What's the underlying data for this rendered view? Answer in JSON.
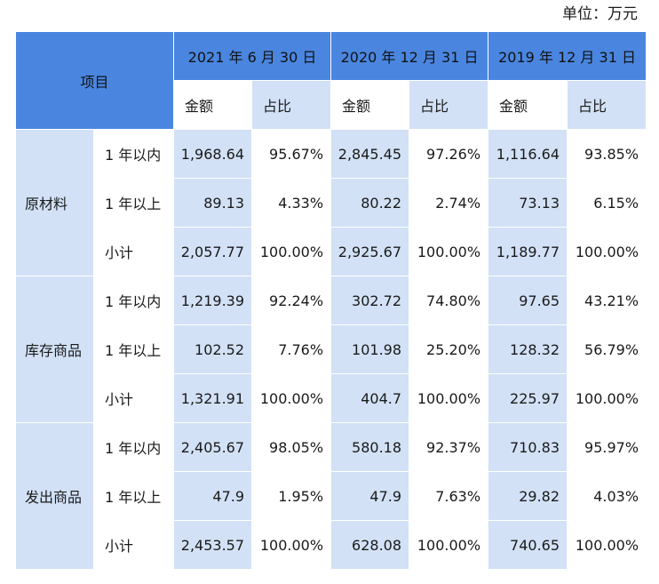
{
  "unit": "单位：万元",
  "header": {
    "item": "项目",
    "periods": [
      "2021 年 6 月 30 日",
      "2020 年 12 月 31 日",
      "2019 年 12 月 31 日"
    ],
    "amount": "金额",
    "ratio": "占比"
  },
  "groups": [
    {
      "name": "原材料",
      "rows": [
        {
          "label": "1 年以内",
          "values": [
            "1,968.64",
            "95.67%",
            "2,845.45",
            "97.26%",
            "1,116.64",
            "93.85%"
          ]
        },
        {
          "label": "1 年以上",
          "values": [
            "89.13",
            "4.33%",
            "80.22",
            "2.74%",
            "73.13",
            "6.15%"
          ]
        },
        {
          "label": "小计",
          "values": [
            "2,057.77",
            "100.00%",
            "2,925.67",
            "100.00%",
            "1,189.77",
            "100.00%"
          ]
        }
      ]
    },
    {
      "name": "库存商品",
      "rows": [
        {
          "label": "1 年以内",
          "values": [
            "1,219.39",
            "92.24%",
            "302.72",
            "74.80%",
            "97.65",
            "43.21%"
          ]
        },
        {
          "label": "1 年以上",
          "values": [
            "102.52",
            "7.76%",
            "101.98",
            "25.20%",
            "128.32",
            "56.79%"
          ]
        },
        {
          "label": "小计",
          "values": [
            "1,321.91",
            "100.00%",
            "404.7",
            "100.00%",
            "225.97",
            "100.00%"
          ]
        }
      ]
    },
    {
      "name": "发出商品",
      "rows": [
        {
          "label": "1 年以内",
          "values": [
            "2,405.67",
            "98.05%",
            "580.18",
            "92.37%",
            "710.83",
            "95.97%"
          ]
        },
        {
          "label": "1 年以上",
          "values": [
            "47.9",
            "1.95%",
            "47.9",
            "7.63%",
            "29.82",
            "4.03%"
          ]
        },
        {
          "label": "小计",
          "values": [
            "2,453.57",
            "100.00%",
            "628.08",
            "100.00%",
            "740.65",
            "100.00%"
          ]
        }
      ]
    }
  ],
  "colors": {
    "header_blue": "#4a86e0",
    "light_blue": "#d2e1f6",
    "white": "#ffffff"
  }
}
